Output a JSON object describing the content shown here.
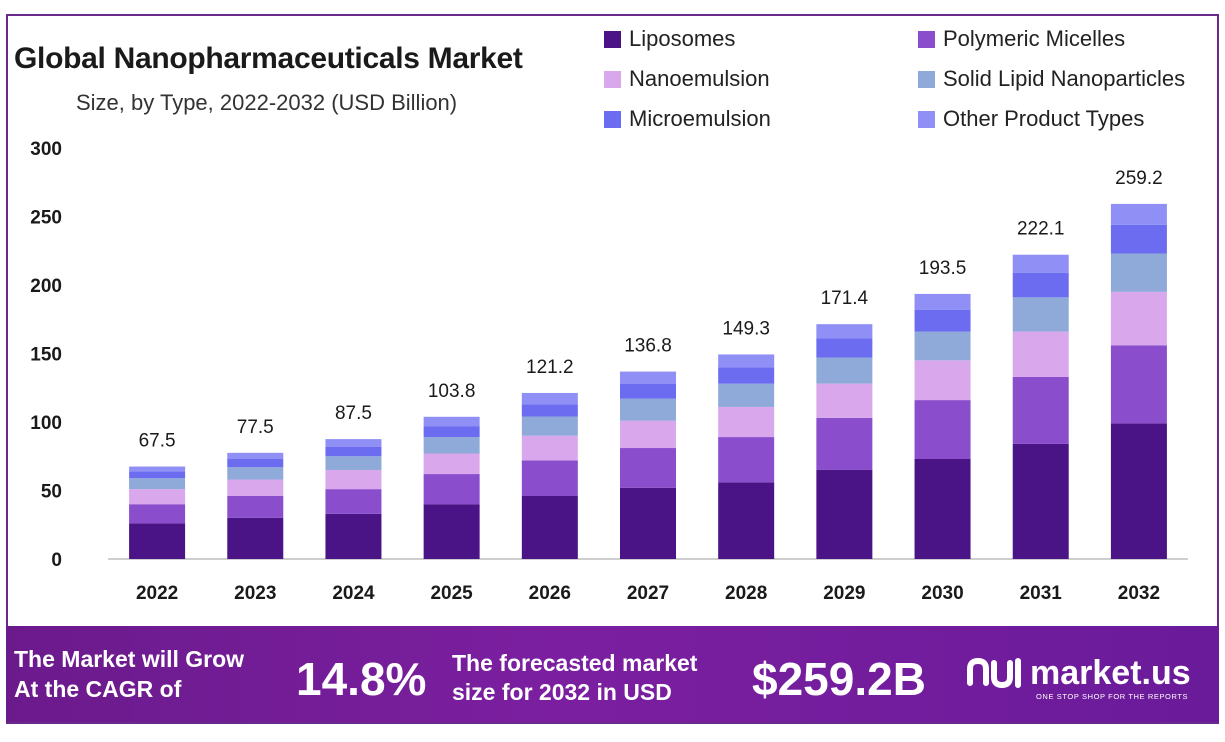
{
  "header": {
    "title": "Global Nanopharmaceuticals Market",
    "subtitle": "Size, by Type, 2022-2032 (USD Billion)"
  },
  "legend": [
    {
      "label": "Liposomes",
      "color": "#4a1486"
    },
    {
      "label": "Polymeric Micelles",
      "color": "#8a4dcc"
    },
    {
      "label": "Nanoemulsion",
      "color": "#d9a8ec"
    },
    {
      "label": "Solid Lipid Nanoparticles",
      "color": "#8fa9d8"
    },
    {
      "label": "Microemulsion",
      "color": "#6b6cf0"
    },
    {
      "label": "Other Product Types",
      "color": "#8f8ff5"
    }
  ],
  "chart_data": {
    "type": "bar",
    "stacked": true,
    "title": "Global Nanopharmaceuticals Market",
    "subtitle": "Size, by Type, 2022-2032 (USD Billion)",
    "xlabel": "",
    "ylabel": "",
    "ylim": [
      0,
      300
    ],
    "yticks": [
      0,
      50,
      100,
      150,
      200,
      250,
      300
    ],
    "categories": [
      "2022",
      "2023",
      "2024",
      "2025",
      "2026",
      "2027",
      "2028",
      "2029",
      "2030",
      "2031",
      "2032"
    ],
    "totals": [
      67.5,
      77.5,
      87.5,
      103.8,
      121.2,
      136.8,
      149.3,
      171.4,
      193.5,
      222.1,
      259.2
    ],
    "total_labels": [
      "67.5",
      "77.5",
      "87.5",
      "103.8",
      "121.2",
      "136.8",
      "149.3",
      "171.4",
      "193.5",
      "222.1",
      "259.2"
    ],
    "series": [
      {
        "name": "Liposomes",
        "values": [
          26,
          30,
          33,
          40,
          46,
          52,
          56,
          65,
          73,
          84,
          99
        ]
      },
      {
        "name": "Polymeric Micelles",
        "values": [
          14,
          16,
          18,
          22,
          26,
          29,
          33,
          38,
          43,
          49,
          57
        ]
      },
      {
        "name": "Nanoemulsion",
        "values": [
          11,
          12,
          14,
          15,
          18,
          20,
          22,
          25,
          29,
          33,
          39
        ]
      },
      {
        "name": "Solid Lipid Nanoparticles",
        "values": [
          8,
          9,
          10,
          12,
          14,
          16,
          17,
          19,
          21,
          25,
          28
        ]
      },
      {
        "name": "Microemulsion",
        "values": [
          5,
          6,
          7,
          8,
          9,
          11,
          12,
          14,
          16,
          18,
          21
        ]
      },
      {
        "name": "Other Product Types",
        "values": [
          3.5,
          4.5,
          5.5,
          6.8,
          8.2,
          8.8,
          9.3,
          10.4,
          11.5,
          13.1,
          15.2
        ]
      }
    ],
    "legend_position": "top-right",
    "grid": false
  },
  "footer": {
    "cagr_line1": "The Market will Grow",
    "cagr_line2": "At the CAGR of",
    "cagr_value": "14.8%",
    "forecast_line1": "The forecasted market",
    "forecast_line2": "size for 2032 in USD",
    "forecast_value": "$259.2B",
    "brand_name": "market.us",
    "brand_tagline": "ONE STOP SHOP FOR THE REPORTS"
  }
}
